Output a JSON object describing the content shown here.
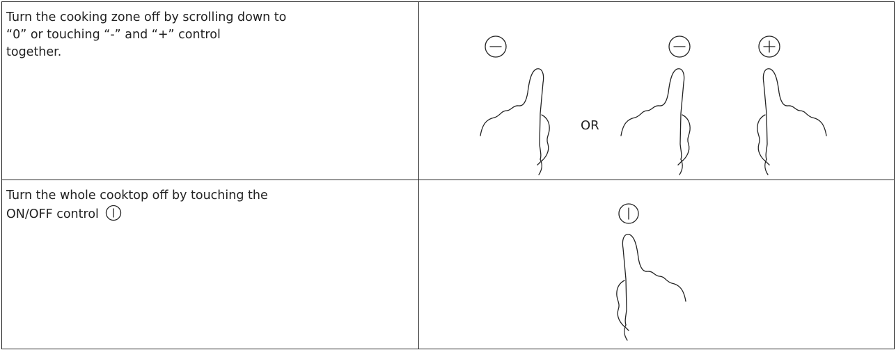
{
  "table": {
    "rows": [
      {
        "text": [
          "Turn the cooking zone off by scrolling down to",
          "“0” or touching “-” and “+” control",
          "together."
        ],
        "figure_label": "OR"
      },
      {
        "text": [
          "Turn the whole cooktop off by touching the",
          "ON/OFF control"
        ]
      }
    ]
  }
}
